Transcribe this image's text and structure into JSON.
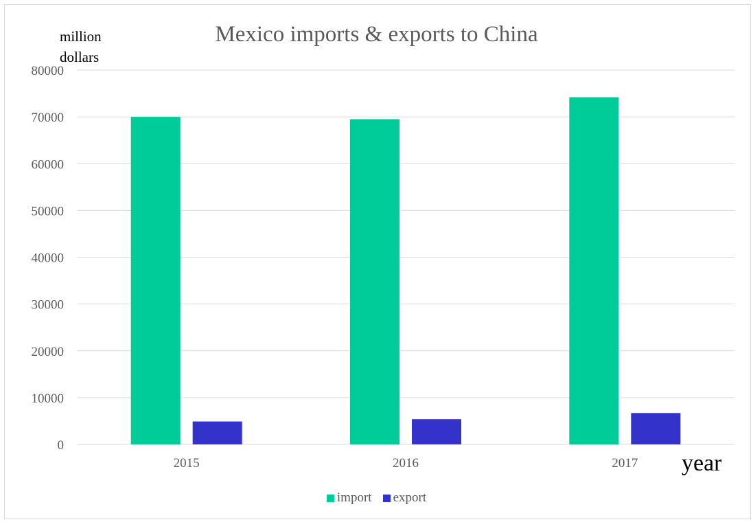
{
  "chart_data": {
    "type": "bar",
    "title": "Mexico imports & exports to China",
    "ylabel": "million dollars",
    "xlabel": "year",
    "categories": [
      "2015",
      "2016",
      "2017"
    ],
    "series": [
      {
        "name": "import",
        "values": [
          70000,
          69500,
          74200
        ],
        "color": "#00cc99"
      },
      {
        "name": "export",
        "values": [
          4900,
          5400,
          6700
        ],
        "color": "#3333cc"
      }
    ],
    "ylim": [
      0,
      80000
    ],
    "yticks": [
      0,
      10000,
      20000,
      30000,
      40000,
      50000,
      60000,
      70000,
      80000
    ],
    "grid": true,
    "legend_position": "bottom"
  }
}
